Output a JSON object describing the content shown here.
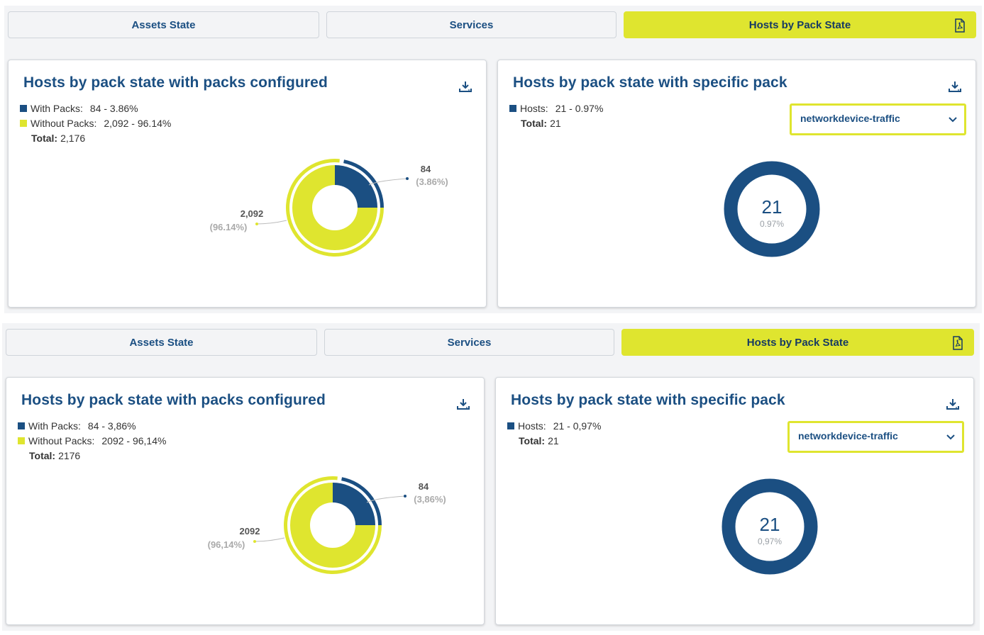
{
  "panels": [
    {
      "tabs": [
        {
          "label": "Assets State"
        },
        {
          "label": "Services"
        },
        {
          "label": "Hosts by Pack State"
        }
      ],
      "left_card": {
        "title": "Hosts by pack state with packs configured",
        "legend": [
          {
            "label": "With Packs:",
            "value": "84 - 3.86%"
          },
          {
            "label": "Without Packs:",
            "value": "2,092 - 96.14%"
          }
        ],
        "total_label": "Total:",
        "total_value": "2,176",
        "callout_with": {
          "value": "84",
          "pct": "(3.86%)"
        },
        "callout_without": {
          "value": "2,092",
          "pct": "(96.14%)"
        }
      },
      "right_card": {
        "title": "Hosts by pack state with specific pack",
        "legend": [
          {
            "label": "Hosts:",
            "value": "21 - 0.97%"
          }
        ],
        "total_label": "Total:",
        "total_value": "21",
        "select_value": "networkdevice-traffic",
        "center_value": "21",
        "center_pct": "0.97%"
      }
    },
    {
      "tabs": [
        {
          "label": "Assets State"
        },
        {
          "label": "Services"
        },
        {
          "label": "Hosts by Pack State"
        }
      ],
      "left_card": {
        "title": "Hosts by pack state with packs configured",
        "legend": [
          {
            "label": "With Packs:",
            "value": "84 - 3,86%"
          },
          {
            "label": "Without Packs:",
            "value": "2092 - 96,14%"
          }
        ],
        "total_label": "Total:",
        "total_value": "2176",
        "callout_with": {
          "value": "84",
          "pct": "(3,86%)"
        },
        "callout_without": {
          "value": "2092",
          "pct": "(96,14%)"
        }
      },
      "right_card": {
        "title": "Hosts by pack state with specific pack",
        "legend": [
          {
            "label": "Hosts:",
            "value": "21 - 0,97%"
          }
        ],
        "total_label": "Total:",
        "total_value": "21",
        "select_value": "networkdevice-traffic",
        "center_value": "21",
        "center_pct": "0,97%"
      }
    }
  ],
  "chart_data": [
    {
      "type": "pie",
      "categories": [
        "With Packs",
        "Without Packs"
      ],
      "values": [
        84,
        2092
      ],
      "colors": [
        "#1b4f82",
        "#dfe52f"
      ]
    },
    {
      "type": "pie",
      "categories": [
        "Hosts"
      ],
      "values": [
        21
      ],
      "colors": [
        "#1b4f82"
      ]
    },
    {
      "type": "pie",
      "categories": [
        "With Packs",
        "Without Packs"
      ],
      "values": [
        84,
        2092
      ],
      "colors": [
        "#1b4f82",
        "#dfe52f"
      ]
    },
    {
      "type": "pie",
      "categories": [
        "Hosts"
      ],
      "values": [
        21
      ],
      "colors": [
        "#1b4f82"
      ]
    }
  ],
  "colors": {
    "accent": "#dfe52f",
    "primary": "#1b4f82"
  },
  "icons": [
    "pdf-icon",
    "download-icon",
    "chevron-down-icon"
  ]
}
